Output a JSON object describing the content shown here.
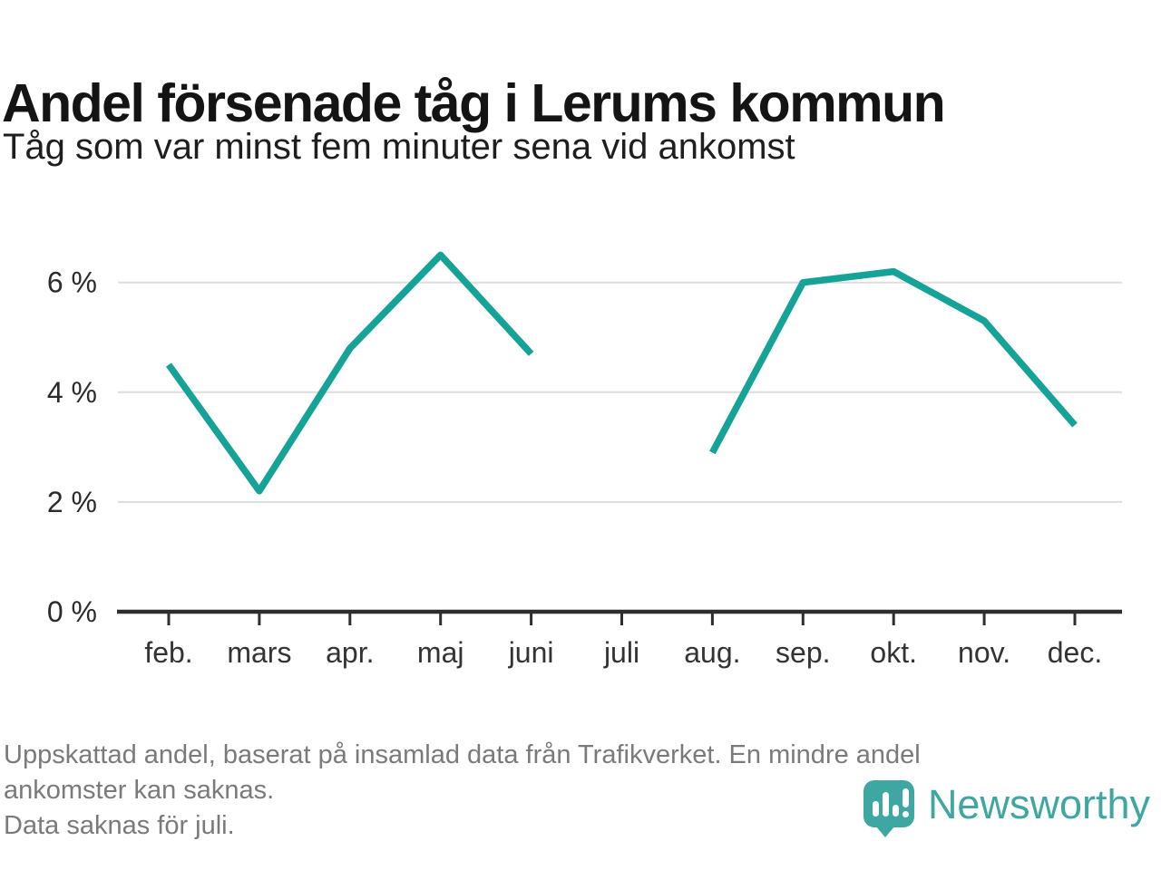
{
  "header": {
    "title": "Andel försenade tåg i Lerums kommun",
    "subtitle": "Tåg som var minst fem minuter sena vid ankomst"
  },
  "chart_data": {
    "type": "line",
    "title": "Andel försenade tåg i Lerums kommun",
    "subtitle": "Tåg som var minst fem minuter sena vid ankomst",
    "categories": [
      "feb.",
      "mars",
      "apr.",
      "maj",
      "juni",
      "juli",
      "aug.",
      "sep.",
      "okt.",
      "nov.",
      "dec."
    ],
    "series": [
      {
        "name": "Andel försenade tåg",
        "values": [
          4.5,
          2.2,
          4.8,
          6.5,
          4.7,
          null,
          2.9,
          6.0,
          6.2,
          5.3,
          3.4
        ]
      }
    ],
    "unit": "%",
    "ylim": [
      0,
      6.9
    ],
    "y_ticks": [
      0,
      2,
      4,
      6
    ],
    "y_tick_labels": [
      "0 %",
      "2 %",
      "4 %",
      "6 %"
    ],
    "grid": "horizontal-only",
    "legend": "none",
    "line_color": "#14A396",
    "gridline_color": "#dddddd",
    "axis_color": "#2e2e2e",
    "tick_label_color": "#333333",
    "missing_data": "juli"
  },
  "footer": {
    "lines": [
      "Uppskattad andel, baserat på insamlad data från Trafikverket. En mindre andel",
      "ankomster kan saknas.",
      "Data saknas för juli."
    ]
  },
  "branding": {
    "name": "Newsworthy",
    "color": "#3FA7A1",
    "icon": "bar-chart-pin-icon"
  }
}
